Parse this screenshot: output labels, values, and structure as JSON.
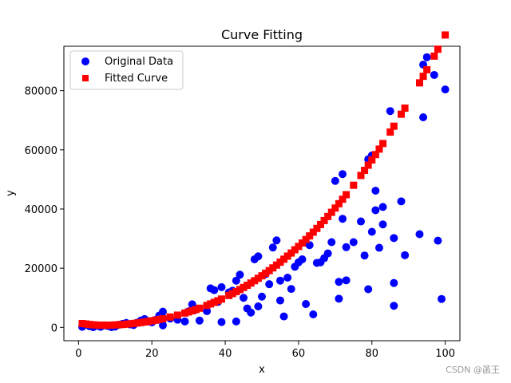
{
  "chart_data": {
    "type": "scatter",
    "title": "Curve Fitting",
    "xlabel": "x",
    "ylabel": "y",
    "xlim": [
      -4,
      104
    ],
    "ylim": [
      -4500,
      95000
    ],
    "xticks": [
      0,
      20,
      40,
      60,
      80,
      100
    ],
    "yticks": [
      0,
      20000,
      40000,
      60000,
      80000
    ],
    "grid": false,
    "legend_position": "top-left",
    "series": [
      {
        "name": "Original Data",
        "marker": "circle",
        "color": "#0000ff",
        "points": [
          [
            1,
            200
          ],
          [
            2,
            1000
          ],
          [
            3,
            400
          ],
          [
            4,
            100
          ],
          [
            5,
            600
          ],
          [
            6,
            200
          ],
          [
            7,
            700
          ],
          [
            8,
            500
          ],
          [
            9,
            100
          ],
          [
            10,
            300
          ],
          [
            11,
            900
          ],
          [
            12,
            1200
          ],
          [
            13,
            1500
          ],
          [
            14,
            1000
          ],
          [
            15,
            800
          ],
          [
            16,
            1600
          ],
          [
            17,
            2300
          ],
          [
            18,
            2800
          ],
          [
            19,
            2000
          ],
          [
            20,
            1700
          ],
          [
            21,
            2500
          ],
          [
            22,
            4000
          ],
          [
            23,
            5300
          ],
          [
            23,
            700
          ],
          [
            25,
            3000
          ],
          [
            27,
            2600
          ],
          [
            29,
            2000
          ],
          [
            30,
            5400
          ],
          [
            31,
            7800
          ],
          [
            32,
            6000
          ],
          [
            33,
            2300
          ],
          [
            35,
            5500
          ],
          [
            36,
            13200
          ],
          [
            37,
            12600
          ],
          [
            38,
            8600
          ],
          [
            39,
            1800
          ],
          [
            39,
            13600
          ],
          [
            41,
            11800
          ],
          [
            42,
            12400
          ],
          [
            43,
            2000
          ],
          [
            43,
            15800
          ],
          [
            44,
            17800
          ],
          [
            45,
            10000
          ],
          [
            46,
            6400
          ],
          [
            47,
            5000
          ],
          [
            48,
            23000
          ],
          [
            49,
            24000
          ],
          [
            49,
            7100
          ],
          [
            50,
            10400
          ],
          [
            51,
            18000
          ],
          [
            52,
            14600
          ],
          [
            53,
            27000
          ],
          [
            54,
            29400
          ],
          [
            55,
            9100
          ],
          [
            55,
            15800
          ],
          [
            56,
            3700
          ],
          [
            57,
            16800
          ],
          [
            58,
            13000
          ],
          [
            59,
            20500
          ],
          [
            60,
            22000
          ],
          [
            61,
            23000
          ],
          [
            62,
            7900
          ],
          [
            63,
            27800
          ],
          [
            64,
            4400
          ],
          [
            65,
            21800
          ],
          [
            66,
            22000
          ],
          [
            67,
            23400
          ],
          [
            68,
            25000
          ],
          [
            69,
            28800
          ],
          [
            70,
            49500
          ],
          [
            71,
            9700
          ],
          [
            71,
            15400
          ],
          [
            72,
            51800
          ],
          [
            72,
            36700
          ],
          [
            73,
            15900
          ],
          [
            73,
            27100
          ],
          [
            75,
            28800
          ],
          [
            77,
            35800
          ],
          [
            78,
            24300
          ],
          [
            79,
            56800
          ],
          [
            79,
            12900
          ],
          [
            80,
            58100
          ],
          [
            80,
            32300
          ],
          [
            81,
            46200
          ],
          [
            81,
            39600
          ],
          [
            82,
            26900
          ],
          [
            83,
            34800
          ],
          [
            83,
            40700
          ],
          [
            85,
            73100
          ],
          [
            86,
            30200
          ],
          [
            86,
            15000
          ],
          [
            86,
            7300
          ],
          [
            88,
            42600
          ],
          [
            89,
            24400
          ],
          [
            93,
            31500
          ],
          [
            94,
            88800
          ],
          [
            94,
            71000
          ],
          [
            95,
            91300
          ],
          [
            97,
            85300
          ],
          [
            98,
            29300
          ],
          [
            99,
            9600
          ],
          [
            100,
            80400
          ]
        ]
      },
      {
        "name": "Fitted Curve",
        "marker": "square",
        "color": "#ff0000",
        "points": [
          [
            1,
            1300
          ],
          [
            2,
            1150
          ],
          [
            3,
            1000
          ],
          [
            4,
            880
          ],
          [
            5,
            800
          ],
          [
            6,
            760
          ],
          [
            7,
            740
          ],
          [
            8,
            750
          ],
          [
            9,
            780
          ],
          [
            10,
            830
          ],
          [
            11,
            900
          ],
          [
            12,
            980
          ],
          [
            13,
            1080
          ],
          [
            14,
            1200
          ],
          [
            15,
            1330
          ],
          [
            16,
            1480
          ],
          [
            17,
            1640
          ],
          [
            18,
            1820
          ],
          [
            19,
            2010
          ],
          [
            20,
            2220
          ],
          [
            21,
            2440
          ],
          [
            22,
            2680
          ],
          [
            23,
            2940
          ],
          [
            25,
            3500
          ],
          [
            27,
            4140
          ],
          [
            29,
            4840
          ],
          [
            30,
            5220
          ],
          [
            31,
            5620
          ],
          [
            32,
            6040
          ],
          [
            33,
            6480
          ],
          [
            35,
            7420
          ],
          [
            36,
            7930
          ],
          [
            37,
            8460
          ],
          [
            38,
            9010
          ],
          [
            39,
            9580
          ],
          [
            41,
            10790
          ],
          [
            42,
            11430
          ],
          [
            43,
            12090
          ],
          [
            44,
            12780
          ],
          [
            45,
            13490
          ],
          [
            46,
            14230
          ],
          [
            47,
            14990
          ],
          [
            48,
            15780
          ],
          [
            49,
            16590
          ],
          [
            50,
            17430
          ],
          [
            51,
            18300
          ],
          [
            52,
            19190
          ],
          [
            53,
            20110
          ],
          [
            54,
            21060
          ],
          [
            55,
            22040
          ],
          [
            56,
            23040
          ],
          [
            57,
            24080
          ],
          [
            58,
            25140
          ],
          [
            59,
            26240
          ],
          [
            60,
            27360
          ],
          [
            61,
            28520
          ],
          [
            62,
            29700
          ],
          [
            63,
            30920
          ],
          [
            64,
            32170
          ],
          [
            65,
            33450
          ],
          [
            66,
            34760
          ],
          [
            67,
            36110
          ],
          [
            68,
            37480
          ],
          [
            69,
            38890
          ],
          [
            70,
            40330
          ],
          [
            71,
            41800
          ],
          [
            72,
            43310
          ],
          [
            73,
            44850
          ],
          [
            75,
            48030
          ],
          [
            77,
            51350
          ],
          [
            78,
            53060
          ],
          [
            79,
            54810
          ],
          [
            80,
            56590
          ],
          [
            81,
            58400
          ],
          [
            82,
            60250
          ],
          [
            83,
            62140
          ],
          [
            85,
            66010
          ],
          [
            86,
            67990
          ],
          [
            88,
            72040
          ],
          [
            89,
            74100
          ],
          [
            93,
            82640
          ],
          [
            94,
            84850
          ],
          [
            95,
            87090
          ],
          [
            97,
            91670
          ],
          [
            98,
            94020
          ],
          [
            100,
            98810
          ]
        ]
      }
    ]
  },
  "watermark": "CSDN @菡王"
}
